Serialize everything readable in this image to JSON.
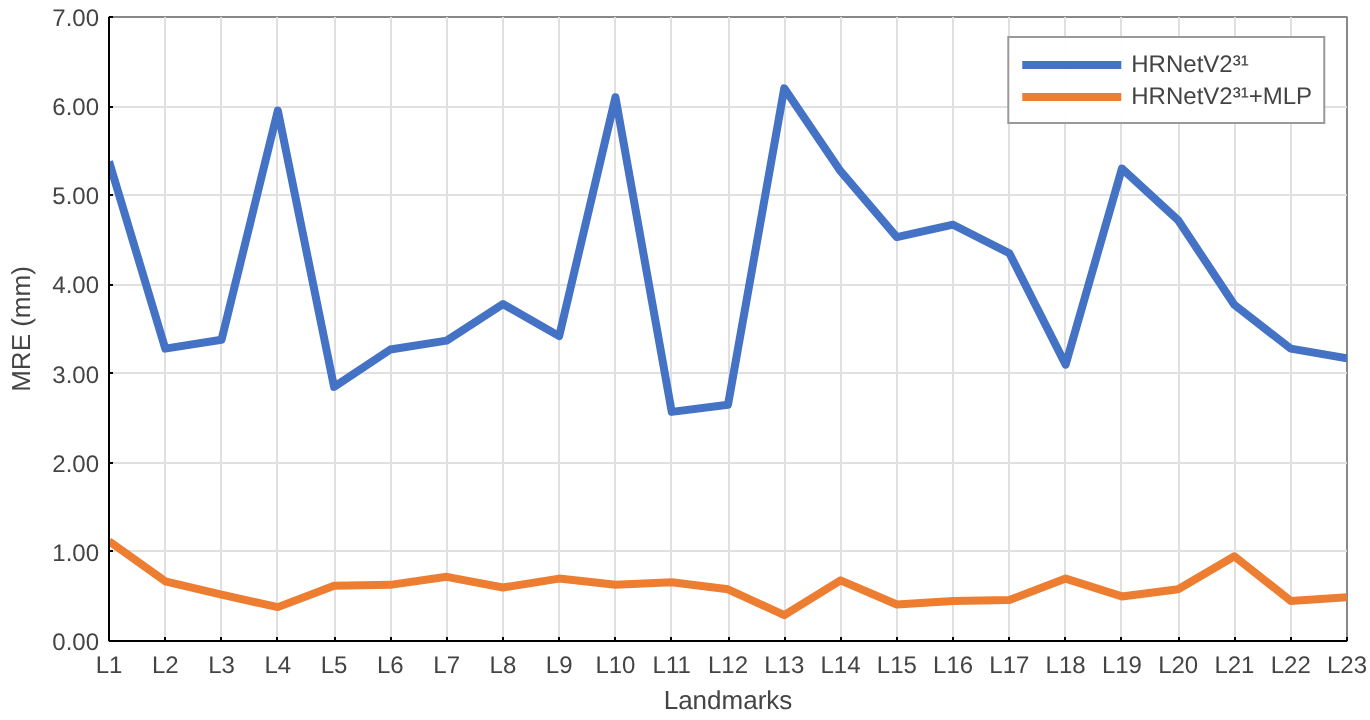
{
  "chart_data": {
    "type": "line",
    "xlabel": "Landmarks",
    "ylabel": "MRE (mm)",
    "categories": [
      "L1",
      "L2",
      "L3",
      "L4",
      "L5",
      "L6",
      "L7",
      "L8",
      "L9",
      "L10",
      "L11",
      "L12",
      "L13",
      "L14",
      "L15",
      "L16",
      "L17",
      "L18",
      "L19",
      "L20",
      "L21",
      "L22",
      "L23"
    ],
    "series": [
      {
        "name": "HRNetV2³¹",
        "color": "#4472c4",
        "values": [
          5.38,
          3.28,
          3.38,
          5.95,
          2.85,
          3.27,
          3.37,
          3.78,
          3.42,
          6.1,
          2.57,
          2.65,
          6.2,
          5.27,
          4.53,
          4.67,
          4.35,
          3.1,
          5.3,
          4.72,
          3.77,
          3.28,
          3.17
        ]
      },
      {
        "name": "HRNetV2³¹+MLP",
        "color": "#ed7d31",
        "values": [
          1.12,
          0.67,
          0.52,
          0.38,
          0.62,
          0.63,
          0.72,
          0.6,
          0.7,
          0.63,
          0.66,
          0.58,
          0.29,
          0.68,
          0.41,
          0.45,
          0.46,
          0.7,
          0.5,
          0.58,
          0.95,
          0.45,
          0.49
        ]
      }
    ],
    "ylim": [
      0,
      7
    ],
    "yticks": [
      {
        "value": 0,
        "label": "0.00"
      },
      {
        "value": 1,
        "label": "1.00"
      },
      {
        "value": 2,
        "label": "2.00"
      },
      {
        "value": 3,
        "label": "3.00"
      },
      {
        "value": 4,
        "label": "4.00"
      },
      {
        "value": 5,
        "label": "5.00"
      },
      {
        "value": 6,
        "label": "6.00"
      },
      {
        "value": 7,
        "label": "7.00"
      }
    ],
    "grid": true,
    "legend": "top right",
    "marker": "none",
    "line_style": "solid"
  }
}
